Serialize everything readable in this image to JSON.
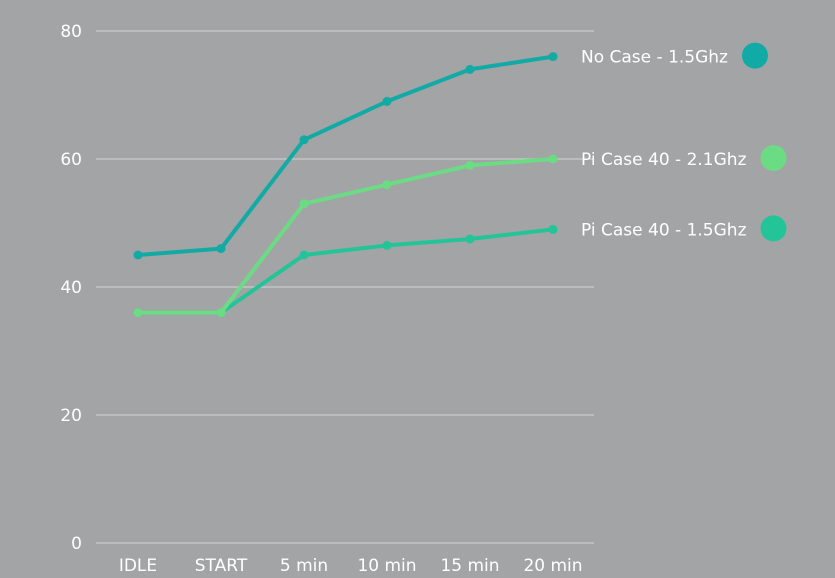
{
  "chart_data": {
    "type": "line",
    "categories": [
      "IDLE",
      "START",
      "5 min",
      "10 min",
      "15 min",
      "20 min"
    ],
    "series": [
      {
        "name": "No Case - 1.5Ghz",
        "values": [
          45,
          46,
          63,
          69,
          74,
          76
        ],
        "color": "#12aaa4"
      },
      {
        "name": "Pi Case 40 - 2.1Ghz",
        "values": [
          36,
          36,
          53,
          56,
          59,
          60
        ],
        "color": "#6cdc84"
      },
      {
        "name": "Pi Case 40 - 1.5Ghz",
        "values": [
          36,
          36,
          45,
          46.5,
          47.5,
          49
        ],
        "color": "#23c598"
      }
    ],
    "y_ticks": [
      0,
      20,
      40,
      60,
      80
    ],
    "ylim": [
      0,
      80
    ],
    "grid": true,
    "legend_position": "right",
    "background": "#a3a4a6",
    "gridline_color": "#c9cacb"
  }
}
